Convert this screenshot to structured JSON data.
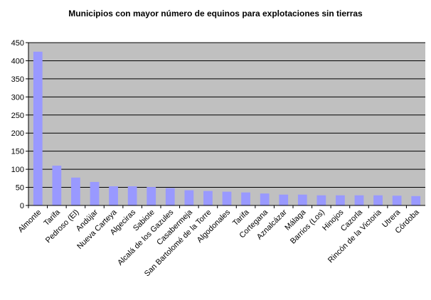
{
  "chart_data": {
    "type": "bar",
    "title": "Municipios con  mayor número de equinos para explotaciones sin tierras",
    "xlabel": "",
    "ylabel": "",
    "ylim": [
      0,
      450
    ],
    "yticks": [
      0,
      50,
      100,
      150,
      200,
      250,
      300,
      350,
      400,
      450
    ],
    "grid": true,
    "legend": "none",
    "bar_color": "#9999ff",
    "plot_bg": "#c0c0c0",
    "categories": [
      "Almonte",
      "Tarifa",
      "Pedroso (El)",
      "Andújar",
      "Nueva Carteya",
      "Algeciras",
      "Sabiote",
      "Alcalá de los Gazules",
      "Casabermeja",
      "San Bartolomé de la Torre",
      "Algodonales",
      "Tarifa",
      "Cortegana",
      "Aznalcázar",
      "Málaga",
      "Barrios (Los)",
      "Hinojos",
      "Cazorla",
      "Rincón de la Victoria",
      "Utrera",
      "Córdoba"
    ],
    "values": [
      425,
      110,
      77,
      65,
      53,
      53,
      51,
      48,
      42,
      40,
      38,
      36,
      33,
      30,
      30,
      28,
      28,
      28,
      28,
      27,
      26
    ]
  }
}
